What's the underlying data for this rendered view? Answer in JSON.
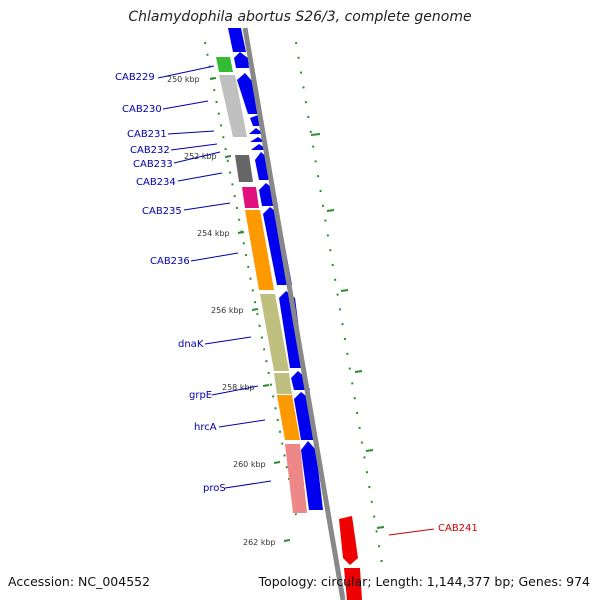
{
  "title": "Chlamydophila abortus S26/3, complete genome",
  "footer": {
    "accession": "Accession: NC_004552",
    "summary": "Topology: circular; Length: 1,144,377 bp; Genes: 974"
  },
  "colors": {
    "forward_strand": "#0000ee",
    "reverse_strand": "#ee0000",
    "backbone": "#888888",
    "tick": "#2e8b2e",
    "label": "#0000aa",
    "label_red": "#cc0000"
  },
  "scale_labels": [
    "250 kbp",
    "252 kbp",
    "254 kbp",
    "256 kbp",
    "258 kbp",
    "260 kbp",
    "262 kbp"
  ],
  "genes": [
    {
      "name": "CAB229",
      "kbp": 249.9,
      "cog_color": "#33bb33"
    },
    {
      "name": "CAB230",
      "kbp": 250.9,
      "cog_color": "#c0c0c0"
    },
    {
      "name": "CAB231",
      "kbp": 251.5,
      "cog_color": ""
    },
    {
      "name": "CAB232",
      "kbp": 251.8,
      "cog_color": ""
    },
    {
      "name": "CAB233",
      "kbp": 252.1,
      "cog_color": ""
    },
    {
      "name": "CAB234",
      "kbp": 252.4,
      "cog_color": "#666666"
    },
    {
      "name": "CAB235",
      "kbp": 253.2,
      "cog_color": "#e0117f"
    },
    {
      "name": "CAB236",
      "kbp": 254.6,
      "cog_color": "#ff9900"
    },
    {
      "name": "dnaK",
      "kbp": 256.8,
      "cog_color": "#bfbf7f"
    },
    {
      "name": "grpE",
      "kbp": 258.2,
      "cog_color": "#bfbf7f"
    },
    {
      "name": "hrcA",
      "kbp": 258.9,
      "cog_color": "#ff9900"
    },
    {
      "name": "proS",
      "kbp": 260.4,
      "cog_color": "#ee8888"
    },
    {
      "name": "CAB241",
      "kbp": 261.8,
      "cog_color": ""
    }
  ]
}
